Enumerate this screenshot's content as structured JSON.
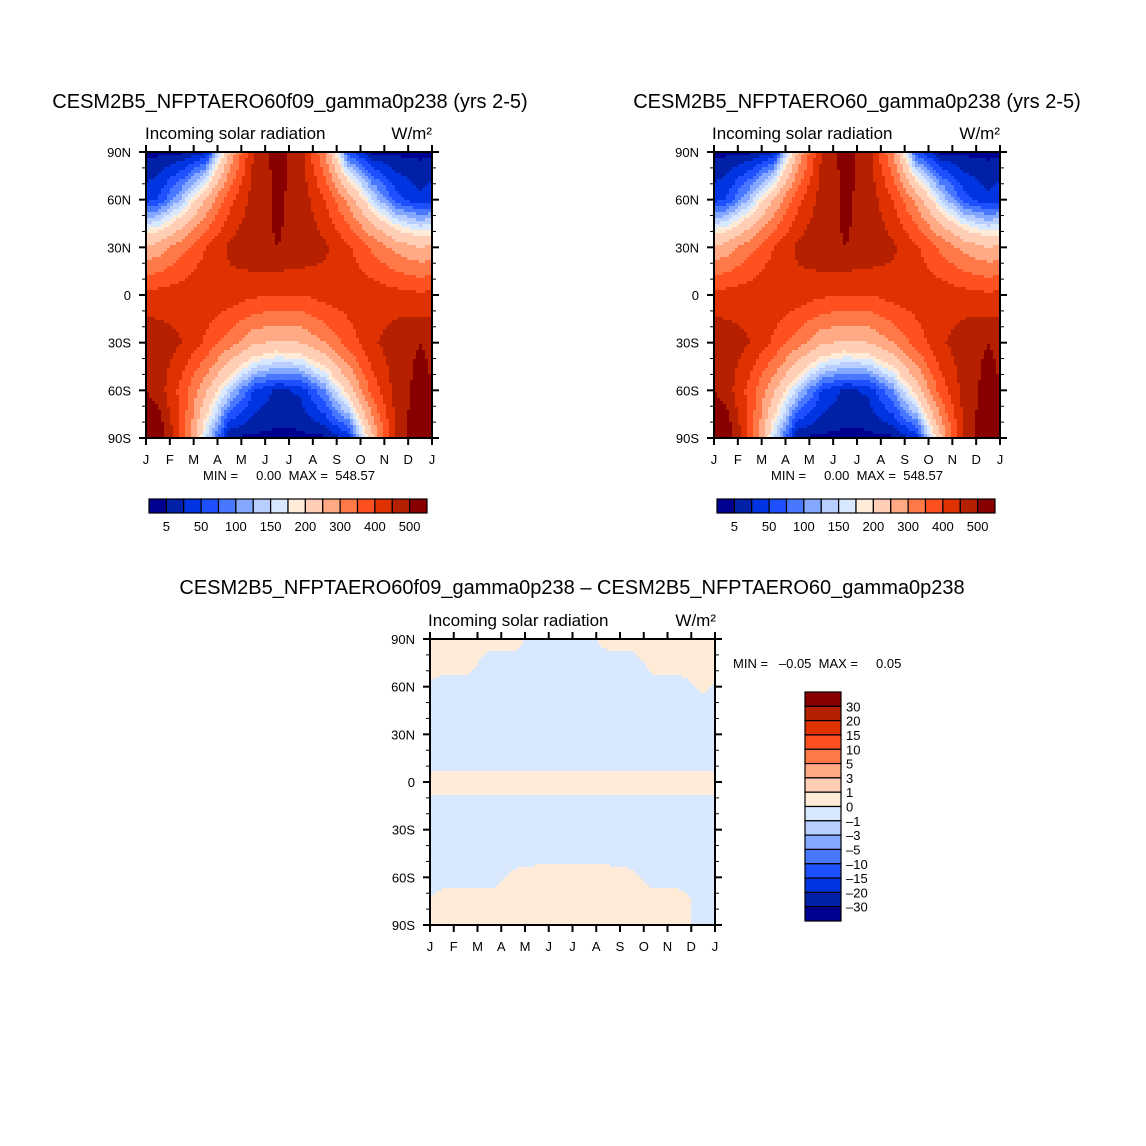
{
  "chart_data": [
    {
      "type": "heatmap",
      "title": "CESM2B5_NFPTAERO60f09_gamma0p238 (yrs 2-5)",
      "subtitle_left": "Incoming solar radiation",
      "subtitle_right": "W/m²",
      "minmax": "MIN =     0.00  MAX =  548.57",
      "x_ticks": [
        "J",
        "F",
        "M",
        "A",
        "M",
        "J",
        "J",
        "A",
        "S",
        "O",
        "N",
        "D",
        "J"
      ],
      "y_ticks": [
        "90N",
        "60N",
        "30N",
        "0",
        "30S",
        "60S",
        "90S"
      ],
      "grid_lats": [
        90,
        60,
        30,
        0,
        -30,
        -60,
        -90
      ],
      "grid_months": [
        "Jan",
        "Feb",
        "Mar",
        "Apr",
        "May",
        "Jun",
        "Jul",
        "Aug",
        "Sep",
        "Oct",
        "Nov",
        "Dec"
      ],
      "values": [
        [
          0,
          0,
          20,
          250,
          450,
          520,
          470,
          300,
          60,
          0,
          0,
          0
        ],
        [
          50,
          130,
          250,
          380,
          470,
          510,
          480,
          400,
          280,
          150,
          60,
          30
        ],
        [
          270,
          330,
          400,
          460,
          490,
          500,
          490,
          460,
          410,
          340,
          280,
          250
        ],
        [
          420,
          430,
          440,
          430,
          410,
          400,
          400,
          420,
          430,
          430,
          420,
          410
        ],
        [
          480,
          450,
          390,
          320,
          260,
          240,
          250,
          300,
          370,
          440,
          480,
          500
        ],
        [
          480,
          380,
          260,
          140,
          50,
          20,
          30,
          100,
          220,
          370,
          470,
          520
        ],
        [
          550,
          390,
          150,
          0,
          0,
          0,
          0,
          0,
          30,
          240,
          460,
          550
        ]
      ],
      "levels": [
        5,
        25,
        50,
        75,
        100,
        125,
        150,
        175,
        200,
        250,
        300,
        350,
        400,
        450,
        500
      ],
      "colorbar_labels": [
        "5",
        "50",
        "100",
        "150",
        "200",
        "300",
        "400",
        "500"
      ]
    },
    {
      "type": "heatmap",
      "title": "CESM2B5_NFPTAERO60_gamma0p238 (yrs 2-5)",
      "subtitle_left": "Incoming solar radiation",
      "subtitle_right": "W/m²",
      "minmax": "MIN =     0.00  MAX =  548.57",
      "x_ticks": [
        "J",
        "F",
        "M",
        "A",
        "M",
        "J",
        "J",
        "A",
        "S",
        "O",
        "N",
        "D",
        "J"
      ],
      "y_ticks": [
        "90N",
        "60N",
        "30N",
        "0",
        "30S",
        "60S",
        "90S"
      ],
      "grid_lats": [
        90,
        60,
        30,
        0,
        -30,
        -60,
        -90
      ],
      "grid_months": [
        "Jan",
        "Feb",
        "Mar",
        "Apr",
        "May",
        "Jun",
        "Jul",
        "Aug",
        "Sep",
        "Oct",
        "Nov",
        "Dec"
      ],
      "values": [
        [
          0,
          0,
          20,
          250,
          450,
          520,
          470,
          300,
          60,
          0,
          0,
          0
        ],
        [
          50,
          130,
          250,
          380,
          470,
          510,
          480,
          400,
          280,
          150,
          60,
          30
        ],
        [
          270,
          330,
          400,
          460,
          490,
          500,
          490,
          460,
          410,
          340,
          280,
          250
        ],
        [
          420,
          430,
          440,
          430,
          410,
          400,
          400,
          420,
          430,
          430,
          420,
          410
        ],
        [
          480,
          450,
          390,
          320,
          260,
          240,
          250,
          300,
          370,
          440,
          480,
          500
        ],
        [
          480,
          380,
          260,
          140,
          50,
          20,
          30,
          100,
          220,
          370,
          470,
          520
        ],
        [
          550,
          390,
          150,
          0,
          0,
          0,
          0,
          0,
          30,
          240,
          460,
          550
        ]
      ],
      "levels": [
        5,
        25,
        50,
        75,
        100,
        125,
        150,
        175,
        200,
        250,
        300,
        350,
        400,
        450,
        500
      ],
      "colorbar_labels": [
        "5",
        "50",
        "100",
        "150",
        "200",
        "300",
        "400",
        "500"
      ]
    },
    {
      "type": "heatmap",
      "title": "CESM2B5_NFPTAERO60f09_gamma0p238 – CESM2B5_NFPTAERO60_gamma0p238",
      "subtitle_left": "Incoming solar radiation",
      "subtitle_right": "W/m²",
      "minmax": "MIN =   –0.05  MAX =     0.05",
      "x_ticks": [
        "J",
        "F",
        "M",
        "A",
        "M",
        "J",
        "J",
        "A",
        "S",
        "O",
        "N",
        "D",
        "J"
      ],
      "y_ticks": [
        "90N",
        "60N",
        "30N",
        "0",
        "30S",
        "60S",
        "90S"
      ],
      "grid_lats": [
        90,
        75,
        60,
        45,
        30,
        15,
        0,
        -15,
        -30,
        -45,
        -60,
        -75,
        -90
      ],
      "grid_months": [
        "Jan",
        "Feb",
        "Mar",
        "Apr",
        "May",
        "Jun",
        "Jul",
        "Aug",
        "Sep",
        "Oct",
        "Nov",
        "Dec"
      ],
      "values": [
        [
          0.02,
          0.02,
          0.02,
          0.02,
          -0.02,
          -0.02,
          -0.02,
          0.02,
          0.02,
          0.02,
          0.02,
          0.02
        ],
        [
          0.02,
          0.02,
          -0.02,
          -0.02,
          -0.02,
          -0.02,
          -0.02,
          -0.02,
          -0.02,
          0.02,
          0.02,
          0.02
        ],
        [
          -0.02,
          -0.02,
          -0.02,
          -0.02,
          -0.02,
          -0.02,
          -0.02,
          -0.02,
          -0.02,
          -0.02,
          -0.02,
          0.01
        ],
        [
          -0.02,
          -0.02,
          -0.02,
          -0.02,
          -0.02,
          -0.02,
          -0.02,
          -0.02,
          -0.02,
          -0.02,
          -0.02,
          -0.02
        ],
        [
          -0.02,
          -0.02,
          -0.02,
          -0.02,
          -0.02,
          -0.02,
          -0.02,
          -0.02,
          -0.02,
          -0.02,
          -0.02,
          -0.02
        ],
        [
          -0.02,
          -0.02,
          -0.02,
          -0.02,
          -0.02,
          -0.02,
          -0.02,
          -0.02,
          -0.02,
          -0.02,
          -0.02,
          -0.02
        ],
        [
          0.02,
          0.02,
          0.02,
          0.02,
          0.02,
          0.02,
          0.02,
          0.02,
          0.02,
          0.02,
          0.02,
          0.02
        ],
        [
          -0.02,
          -0.02,
          -0.02,
          -0.02,
          -0.02,
          -0.02,
          -0.02,
          -0.02,
          -0.02,
          -0.02,
          -0.02,
          -0.02
        ],
        [
          -0.02,
          -0.02,
          -0.02,
          -0.02,
          -0.02,
          -0.02,
          -0.02,
          -0.02,
          -0.02,
          -0.02,
          -0.02,
          -0.02
        ],
        [
          -0.02,
          -0.02,
          -0.02,
          -0.02,
          -0.02,
          -0.02,
          -0.02,
          -0.02,
          -0.02,
          -0.02,
          -0.02,
          -0.02
        ],
        [
          -0.02,
          -0.02,
          -0.02,
          0.01,
          0.02,
          0.02,
          0.02,
          0.02,
          0.01,
          -0.02,
          -0.02,
          -0.02
        ],
        [
          0.02,
          0.02,
          0.02,
          0.02,
          0.02,
          0.02,
          0.02,
          0.02,
          0.02,
          0.02,
          0.02,
          -0.02
        ],
        [
          0.02,
          0.02,
          0.02,
          0.02,
          0.02,
          0.02,
          0.02,
          0.02,
          0.02,
          0.02,
          0.02,
          -0.02
        ]
      ],
      "levels": [
        -30,
        -20,
        -15,
        -10,
        -5,
        -3,
        -1,
        0,
        1,
        3,
        5,
        10,
        15,
        20,
        30
      ],
      "colorbar_labels": [
        "30",
        "20",
        "15",
        "10",
        "5",
        "3",
        "1",
        "0",
        "–1",
        "–3",
        "–5",
        "–10",
        "–15",
        "–20",
        "–30"
      ]
    }
  ],
  "colors": [
    "#000090",
    "#0020a8",
    "#0034e0",
    "#1e50ff",
    "#4878ff",
    "#84a8ff",
    "#b8ceff",
    "#d8e8ff",
    "#ffebd8",
    "#ffceb4",
    "#ffaa84",
    "#ff7848",
    "#ff5020",
    "#e03200",
    "#b42000",
    "#880000"
  ]
}
